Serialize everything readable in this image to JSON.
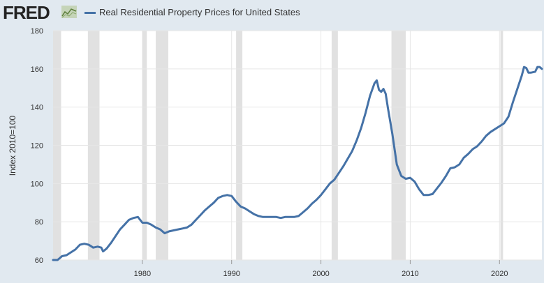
{
  "header": {
    "logo_text": "FRED",
    "logo_icon": "chart-line-icon",
    "legend_label": "Real Residential Property Prices for United States",
    "series_color": "#4572a7"
  },
  "chart_data": {
    "type": "line",
    "title": "Real Residential Property Prices for United States",
    "xlabel": "",
    "ylabel": "Index 2010=100",
    "ylim": [
      60,
      180
    ],
    "xlim": [
      1970.0,
      2024.75
    ],
    "yticks": [
      60,
      80,
      100,
      120,
      140,
      160,
      180
    ],
    "xticks": [
      1980,
      1990,
      2000,
      2010,
      2020
    ],
    "grid": true,
    "legend": "top-left",
    "recessions": [
      [
        1969.9,
        1970.9
      ],
      [
        1973.9,
        1975.2
      ],
      [
        1980.0,
        1980.5
      ],
      [
        1981.5,
        1982.9
      ],
      [
        1990.5,
        1991.2
      ],
      [
        2001.2,
        2001.9
      ],
      [
        2007.9,
        2009.5
      ],
      [
        2020.1,
        2020.4
      ]
    ],
    "series": [
      {
        "name": "Real Residential Property Prices for United States",
        "color": "#4572a7",
        "points": [
          [
            1970.0,
            60.0
          ],
          [
            1970.5,
            60.0
          ],
          [
            1971.0,
            62.0
          ],
          [
            1971.5,
            62.5
          ],
          [
            1972.0,
            64.0
          ],
          [
            1972.5,
            65.5
          ],
          [
            1973.0,
            68.0
          ],
          [
            1973.5,
            68.5
          ],
          [
            1974.0,
            68.0
          ],
          [
            1974.5,
            66.5
          ],
          [
            1975.0,
            67.0
          ],
          [
            1975.4,
            66.5
          ],
          [
            1975.6,
            64.5
          ],
          [
            1976.0,
            66.0
          ],
          [
            1976.5,
            69.0
          ],
          [
            1977.0,
            72.5
          ],
          [
            1977.5,
            76.0
          ],
          [
            1978.0,
            78.5
          ],
          [
            1978.5,
            81.0
          ],
          [
            1979.0,
            82.0
          ],
          [
            1979.5,
            82.5
          ],
          [
            1980.0,
            79.5
          ],
          [
            1980.5,
            79.5
          ],
          [
            1981.0,
            78.5
          ],
          [
            1981.5,
            77.0
          ],
          [
            1982.0,
            76.0
          ],
          [
            1982.5,
            74.0
          ],
          [
            1983.0,
            75.0
          ],
          [
            1983.5,
            75.5
          ],
          [
            1984.0,
            76.0
          ],
          [
            1984.5,
            76.5
          ],
          [
            1985.0,
            77.0
          ],
          [
            1985.5,
            78.5
          ],
          [
            1986.0,
            81.0
          ],
          [
            1986.5,
            83.5
          ],
          [
            1987.0,
            86.0
          ],
          [
            1987.5,
            88.0
          ],
          [
            1988.0,
            90.0
          ],
          [
            1988.5,
            92.5
          ],
          [
            1989.0,
            93.5
          ],
          [
            1989.5,
            94.0
          ],
          [
            1990.0,
            93.5
          ],
          [
            1990.5,
            90.5
          ],
          [
            1991.0,
            88.0
          ],
          [
            1991.5,
            87.0
          ],
          [
            1992.0,
            85.5
          ],
          [
            1992.5,
            84.0
          ],
          [
            1993.0,
            83.0
          ],
          [
            1993.5,
            82.5
          ],
          [
            1994.0,
            82.5
          ],
          [
            1994.5,
            82.5
          ],
          [
            1995.0,
            82.5
          ],
          [
            1995.5,
            82.0
          ],
          [
            1996.0,
            82.5
          ],
          [
            1996.5,
            82.5
          ],
          [
            1997.0,
            82.5
          ],
          [
            1997.5,
            83.0
          ],
          [
            1998.0,
            85.0
          ],
          [
            1998.5,
            87.0
          ],
          [
            1999.0,
            89.5
          ],
          [
            1999.5,
            91.5
          ],
          [
            2000.0,
            94.0
          ],
          [
            2000.5,
            97.0
          ],
          [
            2001.0,
            100.0
          ],
          [
            2001.5,
            102.0
          ],
          [
            2002.0,
            105.5
          ],
          [
            2002.5,
            109.0
          ],
          [
            2003.0,
            113.0
          ],
          [
            2003.5,
            117.0
          ],
          [
            2004.0,
            122.5
          ],
          [
            2004.5,
            129.0
          ],
          [
            2005.0,
            137.0
          ],
          [
            2005.5,
            146.0
          ],
          [
            2006.0,
            152.5
          ],
          [
            2006.25,
            154.0
          ],
          [
            2006.5,
            149.0
          ],
          [
            2006.75,
            148.0
          ],
          [
            2007.0,
            149.5
          ],
          [
            2007.25,
            147.0
          ],
          [
            2007.5,
            139.5
          ],
          [
            2008.0,
            126.0
          ],
          [
            2008.5,
            110.0
          ],
          [
            2009.0,
            104.0
          ],
          [
            2009.5,
            102.5
          ],
          [
            2010.0,
            103.0
          ],
          [
            2010.5,
            101.0
          ],
          [
            2011.0,
            97.0
          ],
          [
            2011.5,
            94.0
          ],
          [
            2012.0,
            94.0
          ],
          [
            2012.5,
            94.5
          ],
          [
            2013.0,
            97.5
          ],
          [
            2013.5,
            100.5
          ],
          [
            2014.0,
            104.0
          ],
          [
            2014.5,
            108.0
          ],
          [
            2015.0,
            108.5
          ],
          [
            2015.5,
            110.0
          ],
          [
            2016.0,
            113.5
          ],
          [
            2016.5,
            115.5
          ],
          [
            2017.0,
            118.0
          ],
          [
            2017.5,
            119.5
          ],
          [
            2018.0,
            122.0
          ],
          [
            2018.5,
            125.0
          ],
          [
            2019.0,
            127.0
          ],
          [
            2019.5,
            128.5
          ],
          [
            2020.0,
            130.0
          ],
          [
            2020.5,
            131.5
          ],
          [
            2021.0,
            135.0
          ],
          [
            2021.5,
            142.5
          ],
          [
            2022.0,
            149.5
          ],
          [
            2022.5,
            156.5
          ],
          [
            2022.75,
            161.0
          ],
          [
            2023.0,
            160.5
          ],
          [
            2023.25,
            158.0
          ],
          [
            2023.5,
            158.0
          ],
          [
            2024.0,
            158.5
          ],
          [
            2024.25,
            161.0
          ],
          [
            2024.5,
            161.0
          ],
          [
            2024.75,
            160.0
          ]
        ]
      }
    ]
  }
}
